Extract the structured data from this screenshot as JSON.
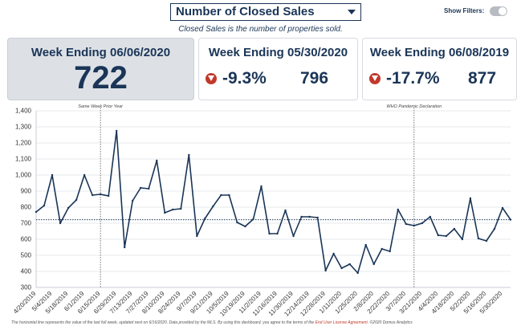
{
  "header": {
    "metric_select": "Number of Closed Sales",
    "filters_label": "Show Filters:",
    "subtitle": "Closed Sales is the number of properties sold."
  },
  "cards": {
    "current": {
      "title": "Week Ending 06/06/2020",
      "value": "722"
    },
    "prev_week": {
      "title": "Week Ending 05/30/2020",
      "pct": "-9.3%",
      "value": "796"
    },
    "prev_year": {
      "title": "Week Ending 06/08/2019",
      "pct": "-17.7%",
      "value": "877"
    }
  },
  "footer": {
    "text": "The horizontal line represents the value of the last full week, updated next on 6/16/2020.  Data provided by the MLS. By using this dashboard, you agree to the terms of the",
    "link": "End User License Agreement.",
    "copyright": "©2020 Domus Analytics"
  },
  "chart_data": {
    "type": "line",
    "ylim": [
      300,
      1400
    ],
    "y_ticks": [
      "300",
      "400",
      "500",
      "600",
      "700",
      "800",
      "900",
      "1,000",
      "1,100",
      "1,200",
      "1,300",
      "1,400"
    ],
    "x_ticks": [
      "4/20/2019",
      "5/4/2019",
      "5/18/2019",
      "6/1/2019",
      "6/15/2019",
      "6/29/2019",
      "7/13/2019",
      "7/27/2019",
      "8/10/2019",
      "8/24/2019",
      "9/7/2019",
      "9/21/2019",
      "10/5/2019",
      "10/19/2019",
      "11/2/2019",
      "11/16/2019",
      "11/30/2019",
      "12/14/2019",
      "12/28/2019",
      "1/11/2020",
      "1/25/2020",
      "2/8/2020",
      "2/22/2020",
      "3/7/2020",
      "3/21/2020",
      "4/4/2020",
      "4/18/2020",
      "5/2/2020",
      "5/16/2020",
      "5/30/2020"
    ],
    "values": [
      770,
      810,
      1000,
      700,
      795,
      845,
      1000,
      875,
      880,
      870,
      1275,
      550,
      840,
      920,
      915,
      1090,
      765,
      785,
      790,
      1125,
      620,
      730,
      805,
      875,
      875,
      705,
      680,
      725,
      930,
      635,
      635,
      780,
      620,
      740,
      740,
      735,
      405,
      510,
      420,
      445,
      390,
      565,
      445,
      540,
      525,
      785,
      695,
      685,
      700,
      740,
      625,
      620,
      665,
      600,
      855,
      605,
      590,
      665,
      795,
      722
    ],
    "reference_line": 722,
    "annotations": [
      {
        "label": "Same Week Prior Year",
        "index": 8
      },
      {
        "label": "WHO Pandemic Declaration",
        "index": 47
      }
    ],
    "grid": "horizontal"
  }
}
